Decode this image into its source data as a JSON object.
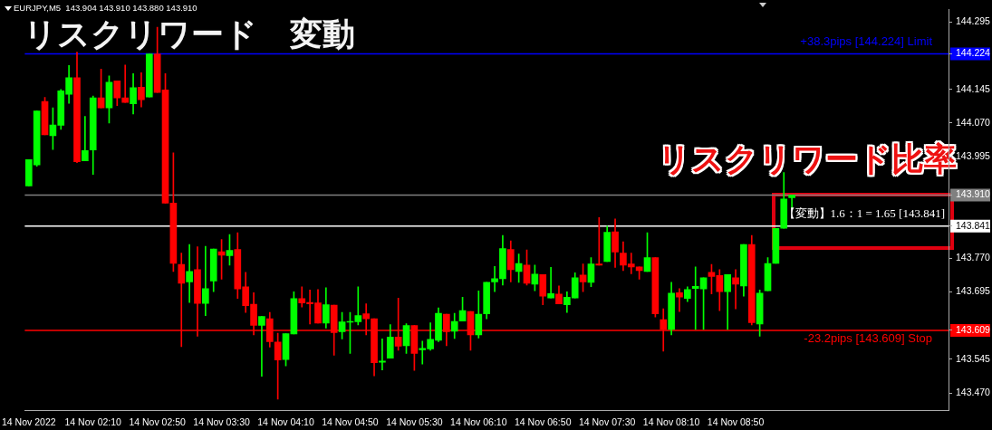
{
  "chart_data": {
    "type": "candlestick",
    "title": "リスクリワード　変動",
    "annotations": [
      "EURJPY,M5  143.904 143.910 143.880 143.910",
      "リスクリワード比率"
    ],
    "categories": [
      "14 Nov 2022",
      null,
      null,
      null,
      null,
      null,
      null,
      null,
      "14 Nov 02:10",
      null,
      null,
      null,
      null,
      null,
      null,
      null,
      "14 Nov 02:50",
      null,
      null,
      null,
      null,
      null,
      null,
      null,
      "14 Nov 03:30",
      null,
      null,
      null,
      null,
      null,
      null,
      null,
      "14 Nov 04:10",
      null,
      null,
      null,
      null,
      null,
      null,
      null,
      "14 Nov 04:50",
      null,
      null,
      null,
      null,
      null,
      null,
      null,
      "14 Nov 05:30",
      null,
      null,
      null,
      null,
      null,
      null,
      null,
      "14 Nov 06:10",
      null,
      null,
      null,
      null,
      null,
      null,
      null,
      "14 Nov 06:50",
      null,
      null,
      null,
      null,
      null,
      null,
      null,
      "14 Nov 07:30",
      null,
      null,
      null,
      null,
      null,
      null,
      null,
      "14 Nov 08:10",
      null,
      null,
      null,
      null,
      null,
      null,
      null,
      "14 Nov 08:50",
      null,
      null,
      null,
      null,
      null,
      null,
      null,
      null,
      null,
      null,
      null,
      null,
      null,
      null,
      null,
      null,
      null,
      null,
      null,
      null,
      null,
      null,
      null,
      null,
      null,
      null
    ],
    "ohlc": [
      [
        143.93,
        143.989,
        143.93,
        143.989
      ],
      [
        143.977,
        144.097,
        143.974,
        144.097
      ],
      [
        144.118,
        144.127,
        144.044,
        144.044
      ],
      [
        144.042,
        144.104,
        144.011,
        144.066
      ],
      [
        144.065,
        144.145,
        144.056,
        144.142
      ],
      [
        144.134,
        144.198,
        144.114,
        144.171
      ],
      [
        144.171,
        144.228,
        143.982,
        143.984
      ],
      [
        143.986,
        144.085,
        143.986,
        144.009
      ],
      [
        144.01,
        144.13,
        143.956,
        144.126
      ],
      [
        144.126,
        144.19,
        144.104,
        144.104
      ],
      [
        144.104,
        144.175,
        144.07,
        144.161
      ],
      [
        144.164,
        144.164,
        144.109,
        144.126
      ],
      [
        144.126,
        144.199,
        144.116,
        144.116
      ],
      [
        144.113,
        144.18,
        144.09,
        144.149
      ],
      [
        144.15,
        144.182,
        144.106,
        144.122
      ],
      [
        144.128,
        144.224,
        144.128,
        144.224
      ],
      [
        144.224,
        144.283,
        144.138,
        144.138
      ],
      [
        144.144,
        144.18,
        143.892,
        143.892
      ],
      [
        143.892,
        144.004,
        143.74,
        143.758
      ],
      [
        143.756,
        143.781,
        143.573,
        143.714
      ],
      [
        143.717,
        143.8,
        143.671,
        143.74
      ],
      [
        143.744,
        143.795,
        143.596,
        143.669
      ],
      [
        143.669,
        143.796,
        143.642,
        143.702
      ],
      [
        143.719,
        143.79,
        143.695,
        143.79
      ],
      [
        143.784,
        143.811,
        143.723,
        143.776
      ],
      [
        143.775,
        143.822,
        143.754,
        143.787
      ],
      [
        143.789,
        143.826,
        143.68,
        143.701
      ],
      [
        143.706,
        143.738,
        143.649,
        143.664
      ],
      [
        143.667,
        143.693,
        143.599,
        143.62
      ],
      [
        143.62,
        143.64,
        143.507,
        143.64
      ],
      [
        143.635,
        143.649,
        143.572,
        143.584
      ],
      [
        143.583,
        143.603,
        143.456,
        143.543
      ],
      [
        143.544,
        143.602,
        143.53,
        143.602
      ],
      [
        143.601,
        143.695,
        143.601,
        143.68
      ],
      [
        143.68,
        143.706,
        143.661,
        143.67
      ],
      [
        143.671,
        143.699,
        143.623,
        143.668
      ],
      [
        143.67,
        143.7,
        143.625,
        143.625
      ],
      [
        143.625,
        143.704,
        143.614,
        143.666
      ],
      [
        143.665,
        143.665,
        143.554,
        143.604
      ],
      [
        143.606,
        143.649,
        143.59,
        143.628
      ],
      [
        143.627,
        143.649,
        143.558,
        143.629
      ],
      [
        143.628,
        143.706,
        143.621,
        143.642
      ],
      [
        143.646,
        143.668,
        143.599,
        143.635
      ],
      [
        143.635,
        143.635,
        143.508,
        143.537
      ],
      [
        143.538,
        143.59,
        143.521,
        143.541
      ],
      [
        143.547,
        143.622,
        143.547,
        143.594
      ],
      [
        143.594,
        143.681,
        143.565,
        143.574
      ],
      [
        143.575,
        143.624,
        143.558,
        143.62
      ],
      [
        143.62,
        143.62,
        143.52,
        143.558
      ],
      [
        143.566,
        143.585,
        143.534,
        143.569
      ],
      [
        143.568,
        143.626,
        143.565,
        143.589
      ],
      [
        143.587,
        143.659,
        143.584,
        143.647
      ],
      [
        143.645,
        143.645,
        143.575,
        143.606
      ],
      [
        143.607,
        143.647,
        143.591,
        143.629
      ],
      [
        143.63,
        143.683,
        143.63,
        143.653
      ],
      [
        143.651,
        143.651,
        143.565,
        143.599
      ],
      [
        143.599,
        143.697,
        143.592,
        143.645
      ],
      [
        143.646,
        143.716,
        143.635,
        143.716
      ],
      [
        143.717,
        143.751,
        143.695,
        143.724
      ],
      [
        143.724,
        143.82,
        143.71,
        143.791
      ],
      [
        143.789,
        143.808,
        143.717,
        143.744
      ],
      [
        143.74,
        143.779,
        143.716,
        143.758
      ],
      [
        143.754,
        143.788,
        143.71,
        143.714
      ],
      [
        143.712,
        143.754,
        143.697,
        143.734
      ],
      [
        143.733,
        143.733,
        143.666,
        143.685
      ],
      [
        143.681,
        143.749,
        143.681,
        143.691
      ],
      [
        143.69,
        143.708,
        143.668,
        143.668
      ],
      [
        143.666,
        143.695,
        143.649,
        143.683
      ],
      [
        143.681,
        143.737,
        143.681,
        143.726
      ],
      [
        143.732,
        143.757,
        143.695,
        143.717
      ],
      [
        143.716,
        143.771,
        143.706,
        143.757
      ],
      [
        143.757,
        143.86,
        143.754,
        143.754
      ],
      [
        143.762,
        143.841,
        143.762,
        143.827
      ],
      [
        143.828,
        143.857,
        143.749,
        143.783
      ],
      [
        143.781,
        143.806,
        143.742,
        143.754
      ],
      [
        143.757,
        143.781,
        143.735,
        143.75
      ],
      [
        143.75,
        143.75,
        143.723,
        143.742
      ],
      [
        143.74,
        143.826,
        143.74,
        143.771
      ],
      [
        143.771,
        143.771,
        143.639,
        143.646
      ],
      [
        143.633,
        143.657,
        143.563,
        143.611
      ],
      [
        143.611,
        143.716,
        143.599,
        143.692
      ],
      [
        143.693,
        143.702,
        143.651,
        143.683
      ],
      [
        143.68,
        143.706,
        143.673,
        143.7
      ],
      [
        143.702,
        143.75,
        143.611,
        143.707
      ],
      [
        143.701,
        143.726,
        143.611,
        143.726
      ],
      [
        143.738,
        143.756,
        143.69,
        143.729
      ],
      [
        143.731,
        143.744,
        143.653,
        143.695
      ],
      [
        143.695,
        143.733,
        143.611,
        143.733
      ],
      [
        143.726,
        143.744,
        143.657,
        143.712
      ],
      [
        143.708,
        143.8,
        143.685,
        143.8
      ],
      [
        143.8,
        143.82,
        143.621,
        143.626
      ],
      [
        143.623,
        143.699,
        143.596,
        143.692
      ],
      [
        143.697,
        143.771,
        143.697,
        143.758
      ],
      [
        143.758,
        143.836,
        143.758,
        143.836
      ],
      [
        143.836,
        143.96,
        143.836,
        143.901
      ],
      [
        143.904,
        143.91,
        143.88,
        143.91
      ],
      null,
      null,
      null,
      null,
      null,
      null,
      null,
      null,
      null,
      null,
      null,
      null,
      null,
      null,
      null,
      null,
      null,
      null,
      null
    ],
    "ylim": [
      143.431,
      144.323
    ],
    "yticks": [
      144.295,
      144.224,
      144.145,
      {
        "value": 144.07,
        "label": "144.070"
      },
      143.995,
      {
        "value": 143.91,
        "label": "143.910"
      },
      143.841,
      {
        "value": 143.77,
        "label": "143.770"
      },
      143.695,
      143.609,
      143.545,
      {
        "value": 143.47,
        "label": "143.470"
      }
    ],
    "ref_lines": [
      {
        "axis": "y",
        "value": 144.224,
        "label": "+38.3pips [144.224] Limit",
        "color": "#0000ff"
      },
      {
        "axis": "y",
        "value": 143.609,
        "label": "-23.2pips [143.609] Stop",
        "color": "#ff0000"
      },
      {
        "axis": "y",
        "value": 143.841,
        "label": "【変動】1.6：1 = 1.65 [143.841]",
        "color": "#ffffff"
      },
      {
        "axis": "y",
        "value": 143.91,
        "label": null,
        "color": "#808080"
      }
    ],
    "grid": false,
    "legend": false
  }
}
